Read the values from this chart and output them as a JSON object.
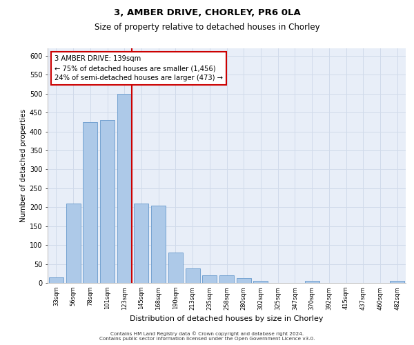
{
  "title1": "3, AMBER DRIVE, CHORLEY, PR6 0LA",
  "title2": "Size of property relative to detached houses in Chorley",
  "xlabel": "Distribution of detached houses by size in Chorley",
  "ylabel": "Number of detached properties",
  "footer1": "Contains HM Land Registry data © Crown copyright and database right 2024.",
  "footer2": "Contains public sector information licensed under the Open Government Licence v3.0.",
  "categories": [
    "33sqm",
    "56sqm",
    "78sqm",
    "101sqm",
    "123sqm",
    "145sqm",
    "168sqm",
    "190sqm",
    "213sqm",
    "235sqm",
    "258sqm",
    "280sqm",
    "302sqm",
    "325sqm",
    "347sqm",
    "370sqm",
    "392sqm",
    "415sqm",
    "437sqm",
    "460sqm",
    "482sqm"
  ],
  "values": [
    15,
    210,
    425,
    430,
    500,
    210,
    205,
    80,
    38,
    20,
    20,
    13,
    5,
    0,
    0,
    5,
    0,
    0,
    0,
    0,
    5
  ],
  "bar_color": "#adc9e8",
  "bar_edge_color": "#6699cc",
  "grid_color": "#d0daea",
  "bg_color": "#e8eef8",
  "marker_color": "#cc0000",
  "marker_bin": 4,
  "annotation_text": "3 AMBER DRIVE: 139sqm\n← 75% of detached houses are smaller (1,456)\n24% of semi-detached houses are larger (473) →",
  "annotation_box_color": "#ffffff",
  "annotation_box_edge": "#cc0000",
  "ylim": [
    0,
    620
  ],
  "yticks": [
    0,
    50,
    100,
    150,
    200,
    250,
    300,
    350,
    400,
    450,
    500,
    550,
    600
  ]
}
